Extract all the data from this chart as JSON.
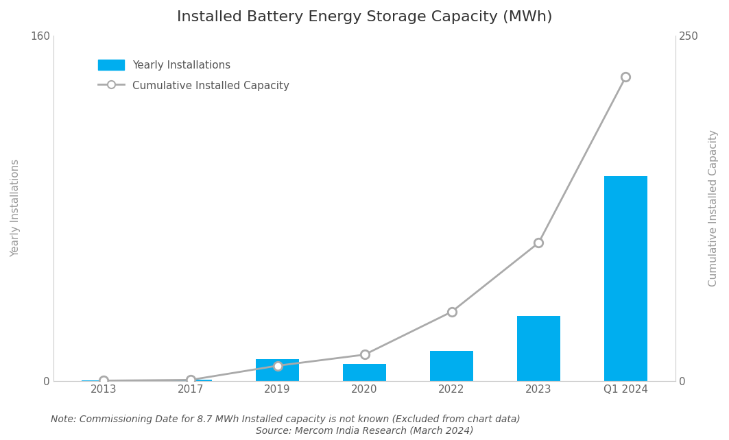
{
  "title": "Installed Battery Energy Storage Capacity (MWh)",
  "categories": [
    "2013",
    "2017",
    "2019",
    "2020",
    "2022",
    "2023",
    "Q1 2024"
  ],
  "yearly_values": [
    0.2,
    0.5,
    10.0,
    8.0,
    14.0,
    30.0,
    95.0
  ],
  "cumulative_values": [
    0.2,
    0.7,
    11.0,
    19.0,
    50.0,
    100.0,
    220.0
  ],
  "bar_color": "#00AEEF",
  "line_color": "#AAAAAA",
  "marker_color": "#FFFFFF",
  "marker_edge_color": "#AAAAAA",
  "ylabel_left": "Yearly Installations",
  "ylabel_right": "Cumulative Installed Capacity",
  "ylim_left": [
    0,
    160
  ],
  "ylim_right": [
    0,
    250
  ],
  "yticks_left": [
    0,
    160
  ],
  "yticks_right": [
    0,
    250
  ],
  "legend_bar_label": "Yearly Installations",
  "legend_line_label": "Cumulative Installed Capacity",
  "note": "Note: Commissioning Date for 8.7 MWh Installed capacity is not known (Excluded from chart data)",
  "source": "Source: Mercom India Research (March 2024)",
  "background_color": "#FFFFFF",
  "spine_color": "#CCCCCC",
  "title_fontsize": 16,
  "label_fontsize": 11,
  "tick_fontsize": 11,
  "note_fontsize": 10,
  "bar_width": 0.5
}
